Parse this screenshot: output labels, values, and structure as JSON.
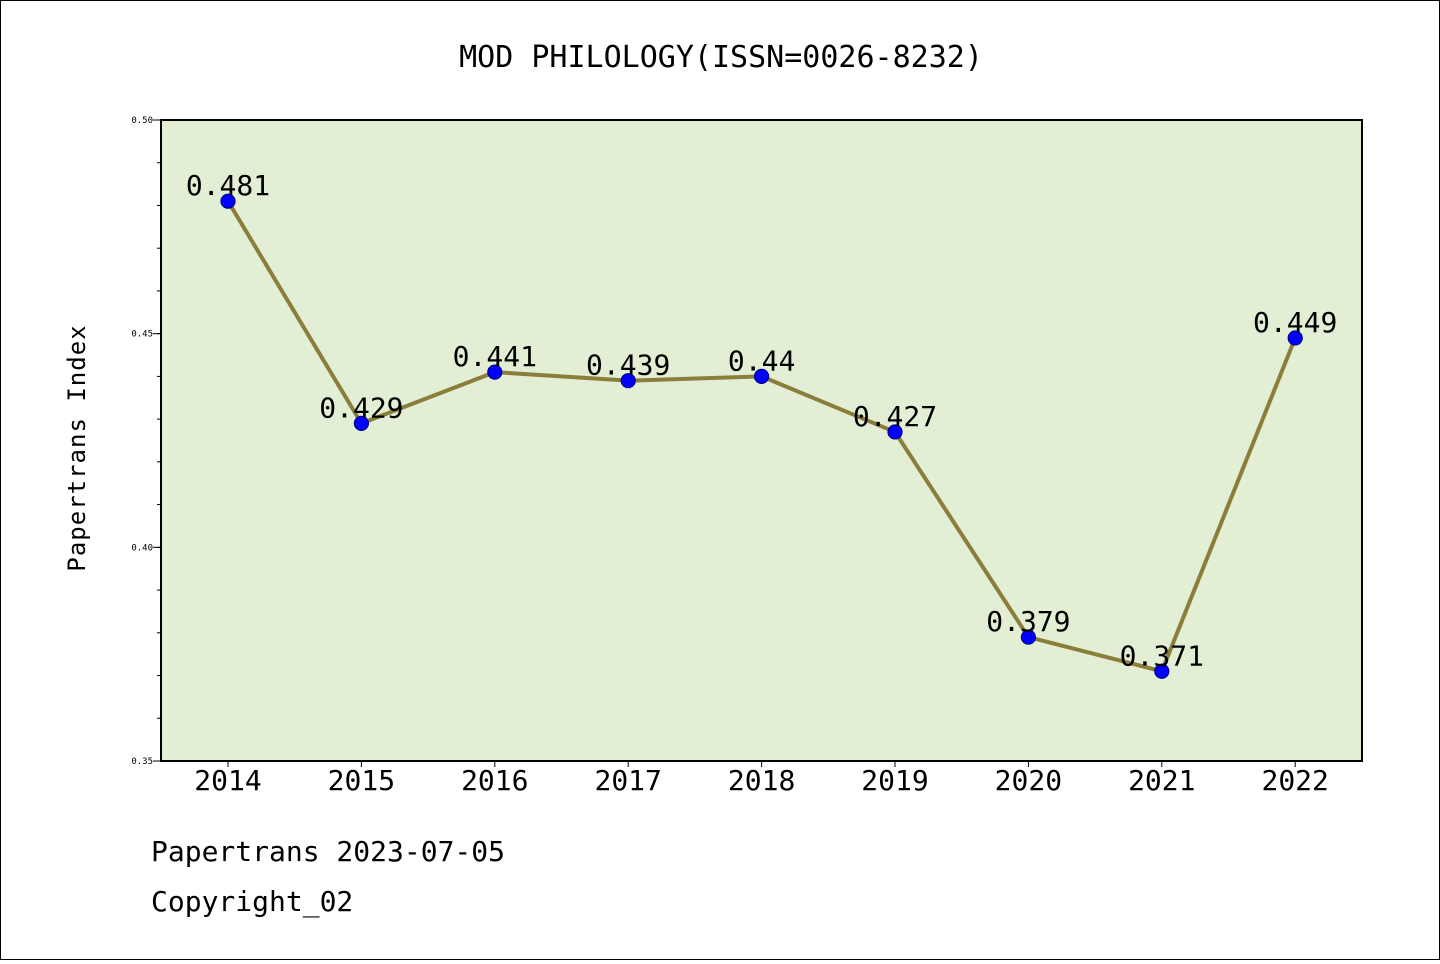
{
  "chart_data": {
    "type": "line",
    "title": "MOD PHILOLOGY(ISSN=0026-8232)",
    "xlabel": "",
    "ylabel": "Papertrans Index",
    "categories": [
      "2014",
      "2015",
      "2016",
      "2017",
      "2018",
      "2019",
      "2020",
      "2021",
      "2022"
    ],
    "values": [
      0.481,
      0.429,
      0.441,
      0.439,
      0.44,
      0.427,
      0.379,
      0.371,
      0.449
    ],
    "value_labels": [
      "0.481",
      "0.429",
      "0.441",
      "0.439",
      "0.44",
      "0.427",
      "0.379",
      "0.371",
      "0.449"
    ],
    "ylim": [
      0.35,
      0.5
    ],
    "yticks": [
      0.35,
      0.4,
      0.45,
      0.5
    ],
    "ytick_labels": [
      "0.35",
      "0.40",
      "0.45",
      "0.50"
    ],
    "grid": false,
    "legend": "none",
    "colors": {
      "plot_background": "#e2efd5",
      "line": "#8b7d3a",
      "marker": "#0000ff",
      "marker_edge": "#00008b"
    }
  },
  "footer": {
    "source": "Papertrans 2023-07-05",
    "copyright": "Copyright_02"
  }
}
